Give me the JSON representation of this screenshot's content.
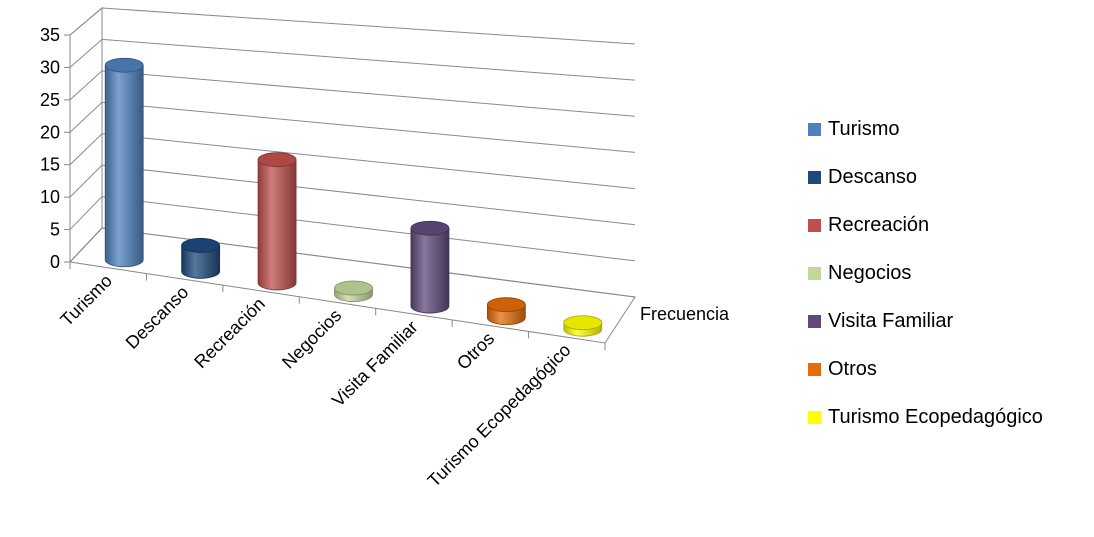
{
  "chart_data": {
    "type": "bar",
    "title": "",
    "xlabel": "",
    "ylabel": "",
    "ylim": [
      0,
      35
    ],
    "yticks": [
      0,
      5,
      10,
      15,
      20,
      25,
      30,
      35
    ],
    "grid": true,
    "depth_label": "Frecuencia",
    "legend_position": "right",
    "categories": [
      "Turismo",
      "Descanso",
      "Recreación",
      "Negocios",
      "Visita Familiar",
      "Otros",
      "Turismo Ecopedagógico"
    ],
    "values": [
      30,
      4,
      19,
      1,
      12,
      2,
      1
    ],
    "colors": [
      "#4F81BD",
      "#1F497D",
      "#C0504D",
      "#C4D79B",
      "#604A7B",
      "#E46C0A",
      "#FFFF00"
    ]
  }
}
